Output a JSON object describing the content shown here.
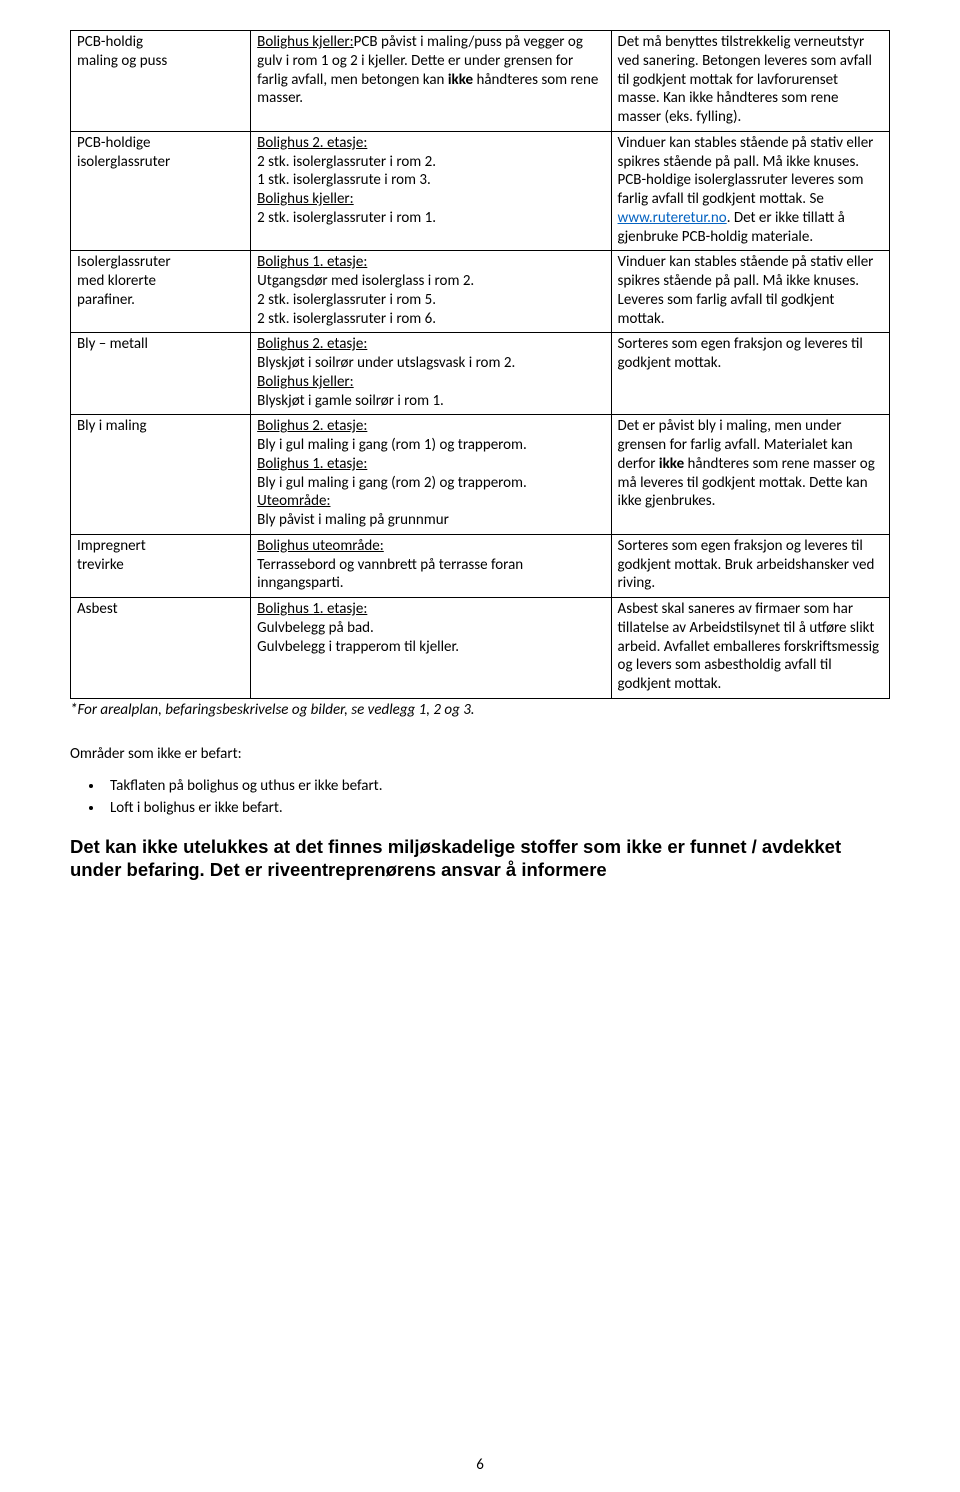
{
  "table": {
    "rows": [
      {
        "c1_lines": [
          "PCB-holdig",
          "maling og puss"
        ],
        "c2_parts": [
          {
            "text": "Bolighus kjeller:",
            "u": true
          },
          {
            "text": "PCB påvist i maling/puss på vegger og gulv i rom 1 og 2 i kjeller. Dette er under grensen for farlig avfall, men betongen kan "
          },
          {
            "text": "ikke",
            "b": true
          },
          {
            "text": " håndteres som rene masser."
          }
        ],
        "c3_lines": [
          "Det må benyttes tilstrekkelig verneutstyr ved sanering. Betongen leveres som avfall til godkjent mottak for lavforurenset masse. Kan ikke håndteres som rene masser (eks. fylling)."
        ]
      },
      {
        "c1_lines": [
          "PCB-holdige",
          "isolerglassruter"
        ],
        "c2_parts": [
          {
            "text": "Bolighus 2. etasje:",
            "u": true
          },
          {
            "br": true
          },
          {
            "text": "2 stk. isolerglassruter i rom 2."
          },
          {
            "br": true
          },
          {
            "text": "1 stk. isolerglassrute i rom 3."
          },
          {
            "br": true
          },
          {
            "text": "Bolighus kjeller:",
            "u": true
          },
          {
            "br": true
          },
          {
            "text": "2 stk. isolerglassruter i rom 1."
          }
        ],
        "c3_parts": [
          {
            "text": "Vinduer kan stables stående på stativ eller spikres stående på pall. Må ikke knuses. PCB-holdige isolerglassruter leveres som farlig avfall til godkjent mottak. Se "
          },
          {
            "text": "www.ruteretur.no",
            "link": true
          },
          {
            "text": ". Det er ikke tillatt å gjenbruke PCB-holdig materiale."
          }
        ]
      },
      {
        "c1_lines": [
          "Isolerglassruter",
          "med klorerte",
          "parafiner."
        ],
        "c2_parts": [
          {
            "text": "Bolighus 1. etasje:",
            "u": true
          },
          {
            "br": true
          },
          {
            "text": "Utgangsdør med isolerglass i rom 2."
          },
          {
            "br": true
          },
          {
            "text": "2 stk. isolerglassruter i rom 5."
          },
          {
            "br": true
          },
          {
            "text": "2 stk. isolerglassruter i rom 6."
          }
        ],
        "c3_lines": [
          "Vinduer kan stables stående på stativ eller spikres stående på pall. Må ikke knuses. Leveres som farlig avfall til godkjent mottak."
        ]
      },
      {
        "c1_lines": [
          "Bly – metall"
        ],
        "c2_parts": [
          {
            "text": "Bolighus 2. etasje:",
            "u": true
          },
          {
            "br": true
          },
          {
            "text": "Blyskjøt i soilrør under utslagsvask i rom 2."
          },
          {
            "br": true
          },
          {
            "text": "Bolighus kjeller:",
            "u": true
          },
          {
            "br": true
          },
          {
            "text": "Blyskjøt i gamle soilrør i rom 1."
          }
        ],
        "c3_lines": [
          "Sorteres som egen fraksjon og leveres til godkjent mottak."
        ]
      },
      {
        "c1_lines": [
          "Bly i maling"
        ],
        "c2_parts": [
          {
            "text": "Bolighus 2. etasje:",
            "u": true
          },
          {
            "br": true
          },
          {
            "text": "Bly i gul maling i gang (rom 1) og trapperom."
          },
          {
            "br": true
          },
          {
            "text": "Bolighus 1. etasje:",
            "u": true
          },
          {
            "br": true
          },
          {
            "text": "Bly i gul maling i gang (rom 2) og trapperom."
          },
          {
            "br": true
          },
          {
            "text": "Uteområde:",
            "u": true
          },
          {
            "br": true
          },
          {
            "text": "Bly påvist i maling på grunnmur"
          }
        ],
        "c3_parts": [
          {
            "text": "Det er påvist bly i maling, men under grensen for farlig avfall. Materialet kan derfor "
          },
          {
            "text": "ikke",
            "b": true
          },
          {
            "text": " håndteres som rene masser og må leveres til godkjent mottak. Dette kan ikke gjenbrukes."
          }
        ]
      },
      {
        "c1_lines": [
          "Impregnert",
          "trevirke"
        ],
        "c2_parts": [
          {
            "text": "Bolighus uteområde:",
            "u": true
          },
          {
            "br": true
          },
          {
            "text": "Terrassebord og vannbrett på terrasse foran inngangsparti."
          }
        ],
        "c3_lines": [
          "Sorteres som egen fraksjon og leveres til godkjent mottak. Bruk arbeidshansker ved riving."
        ]
      },
      {
        "c1_lines": [
          "Asbest"
        ],
        "c2_parts": [
          {
            "text": "Bolighus 1. etasje:",
            "u": true
          },
          {
            "br": true
          },
          {
            "text": "Gulvbelegg på bad."
          },
          {
            "br": true
          },
          {
            "text": "Gulvbelegg i trapperom til kjeller."
          }
        ],
        "c3_lines": [
          "Asbest skal saneres av firmaer som har tillatelse av Arbeidstilsynet til å utføre slikt arbeid. Avfallet emballeres forskriftsmessig og levers som asbestholdig avfall til godkjent mottak."
        ]
      }
    ]
  },
  "footnote": "*For arealplan, befaringsbeskrivelse og bilder, se vedlegg 1, 2 og 3.",
  "areas_title": "Områder som ikke er befart:",
  "bullets": [
    "Takflaten på bolighus og uthus er ikke befart.",
    "Loft i bolighus er ikke befart."
  ],
  "final_bold_1": "Det kan ikke utelukkes at det finnes miljøskadelige stoffer som ikke er funnet / avdekket under befaring",
  "final_bold_2": "Det er riveentreprenørens ansvar å informere",
  "page_number": "6"
}
